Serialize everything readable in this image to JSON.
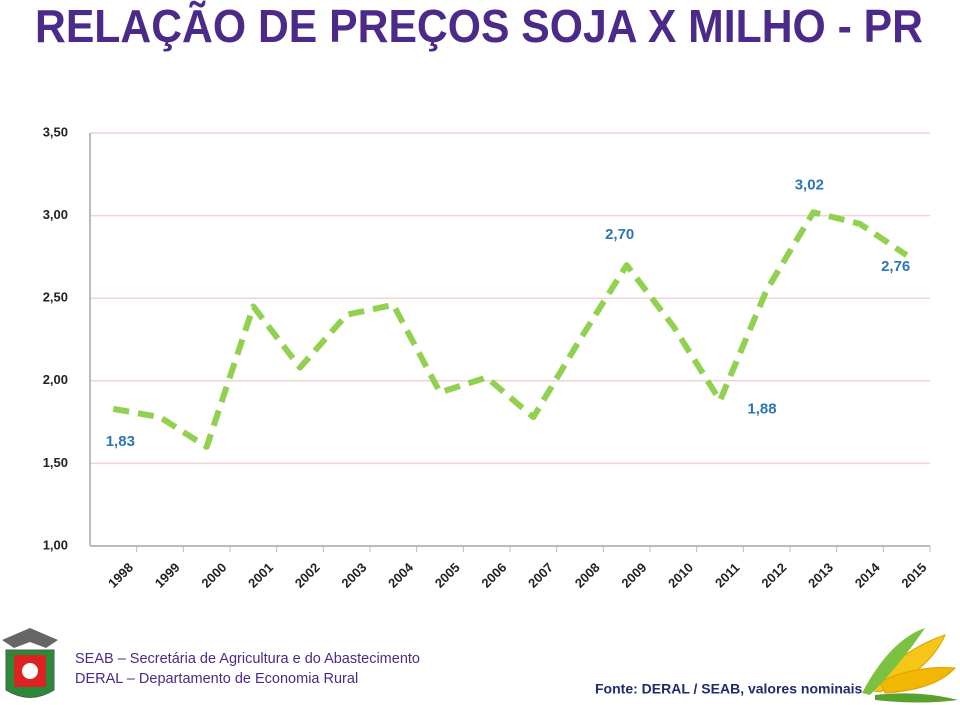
{
  "chart_data": {
    "type": "line",
    "title": "RELAÇÃO DE PREÇOS SOJA X MILHO - PR",
    "categories": [
      "1998",
      "1999",
      "2000",
      "2001",
      "2002",
      "2003",
      "2004",
      "2005",
      "2006",
      "2007",
      "2008",
      "2009",
      "2010",
      "2011",
      "2012",
      "2013",
      "2014",
      "2015"
    ],
    "values": [
      1.83,
      1.78,
      1.6,
      2.45,
      2.08,
      2.4,
      2.46,
      1.93,
      2.02,
      1.78,
      2.25,
      2.7,
      2.33,
      1.88,
      2.55,
      3.02,
      2.95,
      2.76
    ],
    "value_labels": [
      "1,83",
      null,
      null,
      null,
      null,
      null,
      null,
      null,
      null,
      null,
      null,
      "2,70",
      null,
      "1,88",
      null,
      "3,02",
      null,
      "2,76"
    ],
    "color": "#92d050",
    "ylim": [
      1.0,
      3.5
    ],
    "yticks": [
      {
        "value": 1.0,
        "label": "1,00"
      },
      {
        "value": 1.5,
        "label": "1,50"
      },
      {
        "value": 2.0,
        "label": "2,00"
      },
      {
        "value": 2.5,
        "label": "2,50"
      },
      {
        "value": 3.0,
        "label": "3,00"
      },
      {
        "value": 3.5,
        "label": "3,50"
      }
    ],
    "grid": true
  },
  "footer": {
    "line1": "SEAB – Secretária de Agricultura e do Abastecimento",
    "line2": "DERAL – Departamento de Economia Rural",
    "source": "Fonte: DERAL / SEAB, valores nominais"
  }
}
